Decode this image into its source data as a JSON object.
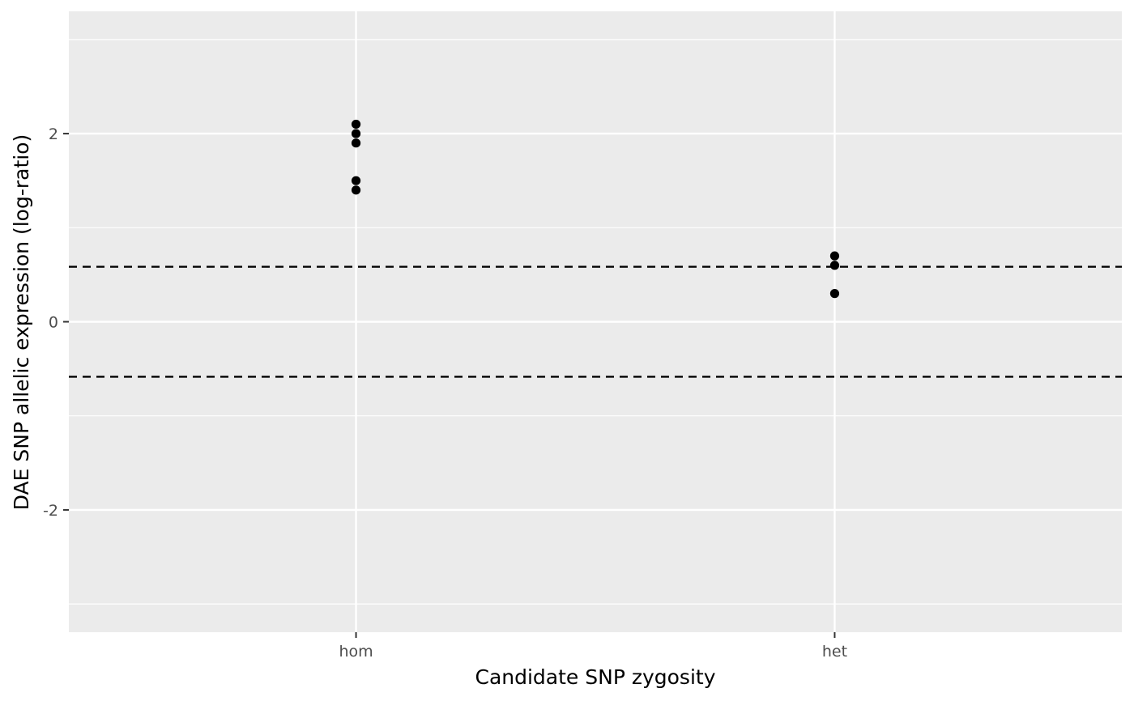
{
  "chart_data": {
    "type": "scatter",
    "title": "",
    "xlabel": "Candidate SNP zygosity",
    "ylabel": "DAE SNP allelic expression (log-ratio)",
    "categories": [
      "hom",
      "het"
    ],
    "ylim": [
      -3.3,
      3.3
    ],
    "y_ticks": [
      {
        "value": -2,
        "label": "-2"
      },
      {
        "value": 0,
        "label": "0"
      },
      {
        "value": 2,
        "label": "2"
      }
    ],
    "y_minor_ticks": [
      -3,
      -1,
      1,
      3
    ],
    "points": [
      {
        "category": "hom",
        "y": 2.1
      },
      {
        "category": "hom",
        "y": 2.0
      },
      {
        "category": "hom",
        "y": 1.9
      },
      {
        "category": "hom",
        "y": 1.5
      },
      {
        "category": "hom",
        "y": 1.4
      },
      {
        "category": "het",
        "y": 0.7
      },
      {
        "category": "het",
        "y": 0.6
      },
      {
        "category": "het",
        "y": 0.3
      }
    ],
    "reference_lines": [
      0.585,
      -0.585
    ],
    "reference_line_style": "dashed",
    "grid": true,
    "legend": "none",
    "colors": {
      "panel": "#ebebeb",
      "grid": "#ffffff",
      "point": "#000000",
      "reference_line": "#000000"
    }
  }
}
